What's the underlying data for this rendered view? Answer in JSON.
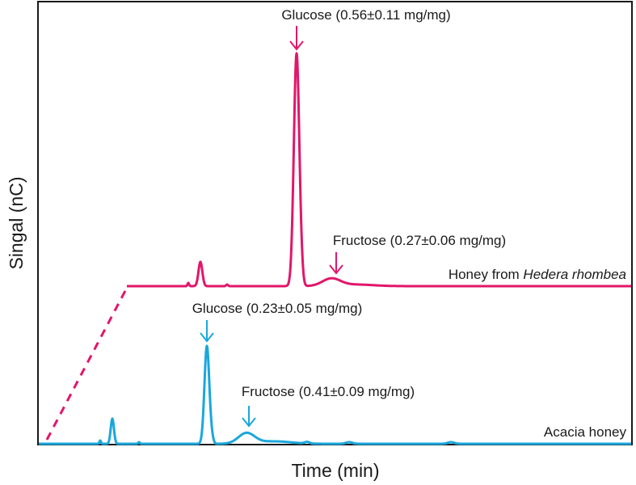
{
  "chart_data": {
    "type": "line",
    "title": "",
    "xlabel": "Time (min)",
    "ylabel": "Singal (nC)",
    "grid": false,
    "legend": "none",
    "series": [
      {
        "id": "hedera",
        "label_plain": "Honey from ",
        "label_italic": "Hedera rhombea",
        "color": "#e2166a",
        "peaks": [
          {
            "compound": "Glucose",
            "annotation": "Glucose (0.56±0.11 mg/mg)"
          },
          {
            "compound": "Fructose",
            "annotation": "Fructose (0.27±0.06 mg/mg)"
          }
        ]
      },
      {
        "id": "acacia",
        "label_plain": "Acacia honey",
        "label_italic": "",
        "color": "#1aa7dc",
        "peaks": [
          {
            "compound": "Glucose",
            "annotation": "Glucose (0.23±0.05 mg/mg)"
          },
          {
            "compound": "Fructose",
            "annotation": "Fructose (0.41±0.09 mg/mg)"
          }
        ]
      }
    ]
  }
}
